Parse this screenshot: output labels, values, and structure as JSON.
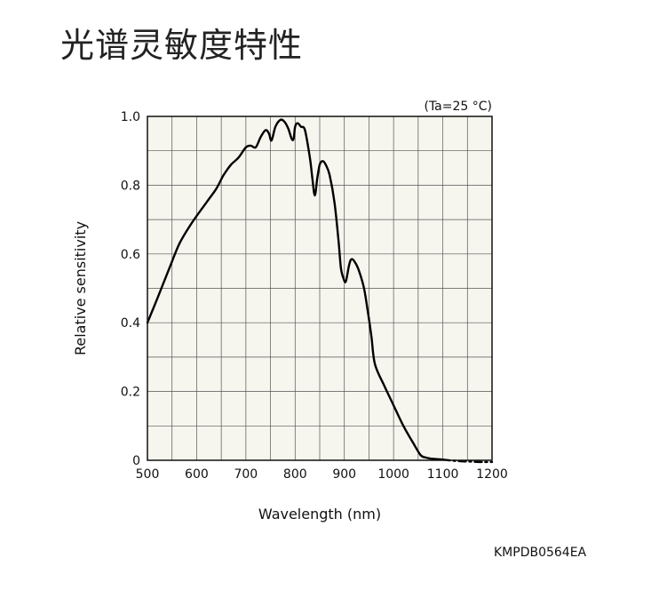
{
  "page": {
    "title": "光谱灵敏度特性",
    "reference_code": "KMPDB0564EA"
  },
  "chart_data": {
    "type": "line",
    "title": "",
    "condition": "(Ta=25 °C)",
    "xlabel": "Wavelength (nm)",
    "ylabel": "Relative sensitivity",
    "xlim": [
      500,
      1200
    ],
    "ylim": [
      0,
      1.0
    ],
    "xticks": [
      500,
      600,
      700,
      800,
      900,
      1000,
      1100,
      1200
    ],
    "xtick_labels": [
      "500",
      "600",
      "700",
      "800",
      "900",
      "1000",
      "1100",
      "1200"
    ],
    "yticks": [
      0,
      0.2,
      0.4,
      0.6,
      0.8,
      1.0
    ],
    "ytick_labels": [
      "0",
      "0.2",
      "0.4",
      "0.6",
      "0.8",
      "1.0"
    ],
    "grid": true,
    "colors": {
      "plot_background": "#f6f5ee",
      "grid": "#555555",
      "line": "#000000"
    },
    "series": [
      {
        "style": "solid",
        "x": [
          500,
          520,
          545,
          565,
          590,
          620,
          640,
          655,
          670,
          685,
          700,
          710,
          720,
          730,
          740,
          747,
          752,
          760,
          770,
          778,
          786,
          793,
          797,
          800,
          805,
          812,
          820,
          830,
          835,
          840,
          845,
          850,
          856,
          862,
          870,
          880,
          888,
          893,
          898,
          903,
          910,
          915,
          922,
          930,
          940,
          948,
          955,
          962,
          980,
          1000,
          1020,
          1040,
          1055,
          1065,
          1075,
          1090,
          1100
        ],
        "y": [
          0.4,
          0.47,
          0.56,
          0.63,
          0.69,
          0.75,
          0.79,
          0.83,
          0.86,
          0.88,
          0.91,
          0.915,
          0.91,
          0.94,
          0.96,
          0.95,
          0.93,
          0.97,
          0.99,
          0.985,
          0.965,
          0.935,
          0.935,
          0.97,
          0.98,
          0.97,
          0.96,
          0.88,
          0.82,
          0.77,
          0.82,
          0.86,
          0.87,
          0.86,
          0.83,
          0.75,
          0.64,
          0.56,
          0.53,
          0.52,
          0.57,
          0.585,
          0.575,
          0.55,
          0.5,
          0.43,
          0.36,
          0.28,
          0.22,
          0.16,
          0.1,
          0.05,
          0.015,
          0.008,
          0.005,
          0.003,
          0.002
        ]
      },
      {
        "style": "dashed",
        "x": [
          1100,
          1120,
          1140,
          1160,
          1180,
          1200
        ],
        "y": [
          0.002,
          -0.001,
          -0.003,
          -0.004,
          -0.005,
          -0.005
        ]
      }
    ]
  }
}
